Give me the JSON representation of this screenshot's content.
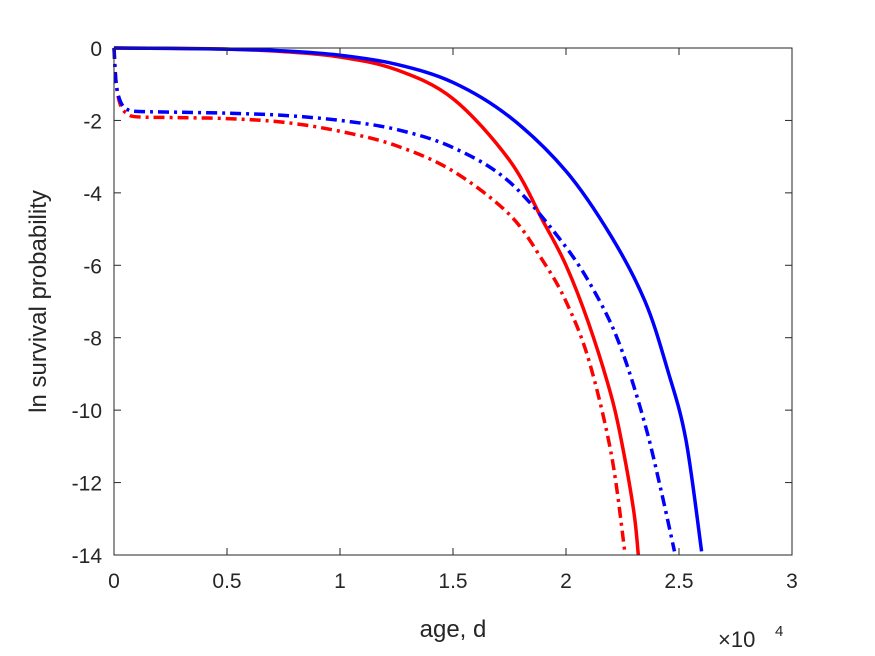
{
  "chart_data": {
    "type": "line",
    "xlabel": "age, d",
    "ylabel": "ln survival probability",
    "x_multiplier": {
      "base": "×10",
      "exponent": "4"
    },
    "xlim": [
      0,
      30000
    ],
    "ylim": [
      -14,
      0
    ],
    "x_ticks": [
      0,
      5000,
      10000,
      15000,
      20000,
      25000,
      30000
    ],
    "x_tick_labels": [
      "0",
      "0.5",
      "1",
      "1.5",
      "2",
      "2.5",
      "3"
    ],
    "y_ticks": [
      0,
      -2,
      -4,
      -6,
      -8,
      -10,
      -12,
      -14
    ],
    "y_tick_labels": [
      "0",
      "-2",
      "-4",
      "-6",
      "-8",
      "-10",
      "-12",
      "-14"
    ],
    "grid": false,
    "series": [
      {
        "color": "#ff0000",
        "style": "solid",
        "x": [
          0,
          2500,
          5000,
          7500,
          10000,
          12500,
          15000,
          17500,
          19000,
          20000,
          21000,
          22000,
          22500,
          23000,
          23200
        ],
        "y": [
          0,
          -0.01,
          -0.03,
          -0.1,
          -0.25,
          -0.6,
          -1.4,
          -3.1,
          -4.8,
          -6.0,
          -7.6,
          -9.6,
          -11.0,
          -12.8,
          -14.0
        ]
      },
      {
        "color": "#0000ff",
        "style": "solid",
        "x": [
          0,
          2500,
          5000,
          7500,
          10000,
          12500,
          15000,
          17500,
          20000,
          22000,
          23500,
          24500,
          25300,
          26000
        ],
        "y": [
          0,
          -0.01,
          -0.03,
          -0.08,
          -0.2,
          -0.45,
          -0.95,
          -1.9,
          -3.4,
          -5.2,
          -7.0,
          -8.9,
          -10.8,
          -13.9
        ]
      },
      {
        "color": "#ff0000",
        "style": "dashdot",
        "x": [
          0,
          100,
          300,
          600,
          1000,
          2500,
          5000,
          7500,
          10000,
          12500,
          15000,
          17500,
          19000,
          20000,
          21000,
          22000,
          22600
        ],
        "y": [
          0,
          -1.0,
          -1.6,
          -1.82,
          -1.9,
          -1.92,
          -1.95,
          -2.05,
          -2.3,
          -2.7,
          -3.4,
          -4.6,
          -5.9,
          -7.0,
          -8.6,
          -11.2,
          -13.9
        ]
      },
      {
        "color": "#0000ff",
        "style": "dashdot",
        "x": [
          0,
          100,
          300,
          600,
          1000,
          2500,
          5000,
          7500,
          10000,
          12500,
          15000,
          17500,
          20000,
          21500,
          22500,
          23500,
          24200,
          24800
        ],
        "y": [
          0,
          -1.0,
          -1.5,
          -1.7,
          -1.75,
          -1.77,
          -1.8,
          -1.86,
          -2.0,
          -2.25,
          -2.75,
          -3.7,
          -5.5,
          -7.0,
          -8.4,
          -10.4,
          -12.2,
          -13.9
        ]
      }
    ]
  }
}
